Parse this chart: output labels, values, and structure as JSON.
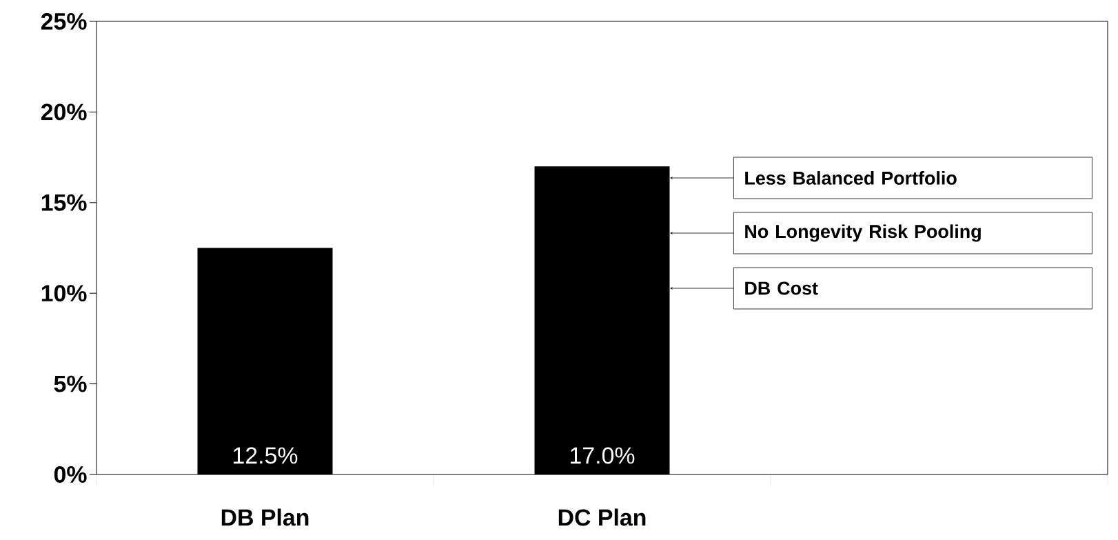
{
  "chart_data": {
    "type": "bar",
    "categories": [
      "DB Plan",
      "DC Plan",
      null
    ],
    "values": [
      12.5,
      17.0,
      null
    ],
    "value_labels": [
      "12.5%",
      "17.0%",
      null
    ],
    "color": "#000000",
    "ylim": [
      0,
      25
    ],
    "yticks": [
      {
        "value": 0,
        "label": "0%"
      },
      {
        "value": 5,
        "label": "5%"
      },
      {
        "value": 10,
        "label": "10%"
      },
      {
        "value": 15,
        "label": "15%"
      },
      {
        "value": 20,
        "label": "20%"
      },
      {
        "value": 25,
        "label": "25%"
      }
    ],
    "grid": false,
    "annotations": [
      "Less Balanced Portfolio",
      "No Longevity Risk Pooling",
      "DB Cost"
    ]
  }
}
